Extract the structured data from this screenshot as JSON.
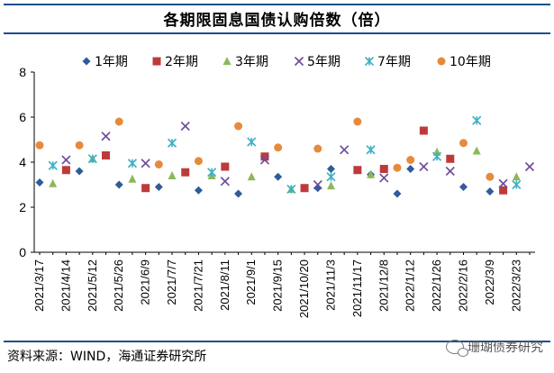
{
  "title": "各期限固息国债认购倍数（倍）",
  "source_note": "资料来源：WIND，海通证券研究所",
  "watermark": "珊瑚债券研究",
  "chart_data": {
    "type": "scatter",
    "title": "各期限固息国债认购倍数（倍）",
    "xlabel": "",
    "ylabel": "",
    "ylim": [
      0,
      8
    ],
    "yticks": [
      0,
      2,
      4,
      6,
      8
    ],
    "categories": [
      "2021/3/17",
      "2021/3/24",
      "2021/4/14",
      "2021/4/21",
      "2021/5/12",
      "2021/5/19",
      "2021/5/26",
      "2021/6/2",
      "2021/6/9",
      "2021/6/16",
      "2021/7/7",
      "2021/7/14",
      "2021/7/21",
      "2021/7/28",
      "2021/8/11",
      "2021/8/18",
      "2021/9/1",
      "2021/9/8",
      "2021/9/15",
      "2021/9/22",
      "2021/10/20",
      "2021/10/27",
      "2021/11/3",
      "2021/11/10",
      "2021/11/17",
      "2021/11/24",
      "2021/12/8",
      "2021/12/15",
      "2022/1/12",
      "2022/1/19",
      "2022/1/26",
      "2022/2/9",
      "2022/2/16",
      "2022/2/23",
      "2022/3/9",
      "2022/3/16",
      "2022/3/23",
      "2022/3/30"
    ],
    "tick_labels": [
      "2021/3/17",
      "2021/4/14",
      "2021/5/12",
      "2021/5/26",
      "2021/6/9",
      "2021/7/7",
      "2021/7/21",
      "2021/8/11",
      "2021/9/1",
      "2021/9/15",
      "2021/10/20",
      "2021/11/3",
      "2021/11/17",
      "2021/12/8",
      "2022/1/12",
      "2022/1/26",
      "2022/2/16",
      "2022/3/9",
      "2022/3/23"
    ],
    "legend_position": "top",
    "series": [
      {
        "name": "1年期",
        "marker": "diamond",
        "color": "#2e5c9a",
        "values": [
          3.1,
          null,
          null,
          3.6,
          null,
          null,
          3.0,
          null,
          null,
          2.9,
          null,
          null,
          2.75,
          null,
          null,
          2.6,
          null,
          null,
          3.35,
          null,
          null,
          2.85,
          3.7,
          null,
          null,
          3.45,
          null,
          2.6,
          3.7,
          null,
          null,
          null,
          2.9,
          null,
          2.7,
          null,
          null,
          null
        ]
      },
      {
        "name": "2年期",
        "marker": "square",
        "color": "#be3a3a",
        "values": [
          null,
          null,
          3.65,
          null,
          null,
          4.3,
          null,
          null,
          2.85,
          null,
          null,
          3.55,
          null,
          null,
          3.8,
          null,
          null,
          4.25,
          null,
          null,
          2.85,
          null,
          null,
          null,
          3.65,
          null,
          3.7,
          null,
          null,
          5.4,
          null,
          4.15,
          null,
          null,
          null,
          2.75,
          null,
          null
        ]
      },
      {
        "name": "3年期",
        "marker": "triangle",
        "color": "#8db85a",
        "values": [
          null,
          3.05,
          null,
          null,
          4.15,
          null,
          null,
          3.25,
          null,
          null,
          3.4,
          null,
          null,
          3.4,
          null,
          null,
          3.35,
          null,
          null,
          2.8,
          null,
          null,
          2.95,
          null,
          null,
          3.45,
          null,
          null,
          null,
          null,
          4.45,
          null,
          null,
          4.5,
          null,
          null,
          3.35,
          null
        ]
      },
      {
        "name": "5年期",
        "marker": "x",
        "color": "#6b4c9a",
        "values": [
          null,
          null,
          4.1,
          null,
          null,
          5.15,
          null,
          null,
          3.95,
          null,
          null,
          5.6,
          null,
          null,
          3.15,
          null,
          null,
          4.1,
          null,
          null,
          null,
          3.0,
          null,
          4.55,
          null,
          null,
          3.3,
          null,
          null,
          3.8,
          null,
          3.6,
          null,
          null,
          null,
          3.05,
          null,
          3.8
        ]
      },
      {
        "name": "7年期",
        "marker": "star",
        "color": "#3fb0c4",
        "values": [
          null,
          3.85,
          null,
          null,
          4.15,
          null,
          null,
          3.95,
          null,
          null,
          4.85,
          null,
          null,
          3.55,
          null,
          null,
          4.9,
          null,
          null,
          2.8,
          null,
          null,
          3.35,
          null,
          null,
          4.55,
          null,
          null,
          null,
          null,
          4.25,
          null,
          null,
          5.85,
          null,
          null,
          3.0,
          null
        ]
      },
      {
        "name": "10年期",
        "marker": "circle",
        "color": "#e68a3c",
        "values": [
          4.75,
          null,
          null,
          4.75,
          null,
          null,
          5.8,
          null,
          null,
          3.9,
          null,
          null,
          4.05,
          null,
          null,
          5.6,
          null,
          null,
          4.65,
          null,
          null,
          4.6,
          null,
          null,
          5.8,
          null,
          null,
          3.75,
          4.1,
          null,
          null,
          null,
          4.85,
          null,
          3.35,
          null,
          null,
          null
        ]
      }
    ]
  }
}
